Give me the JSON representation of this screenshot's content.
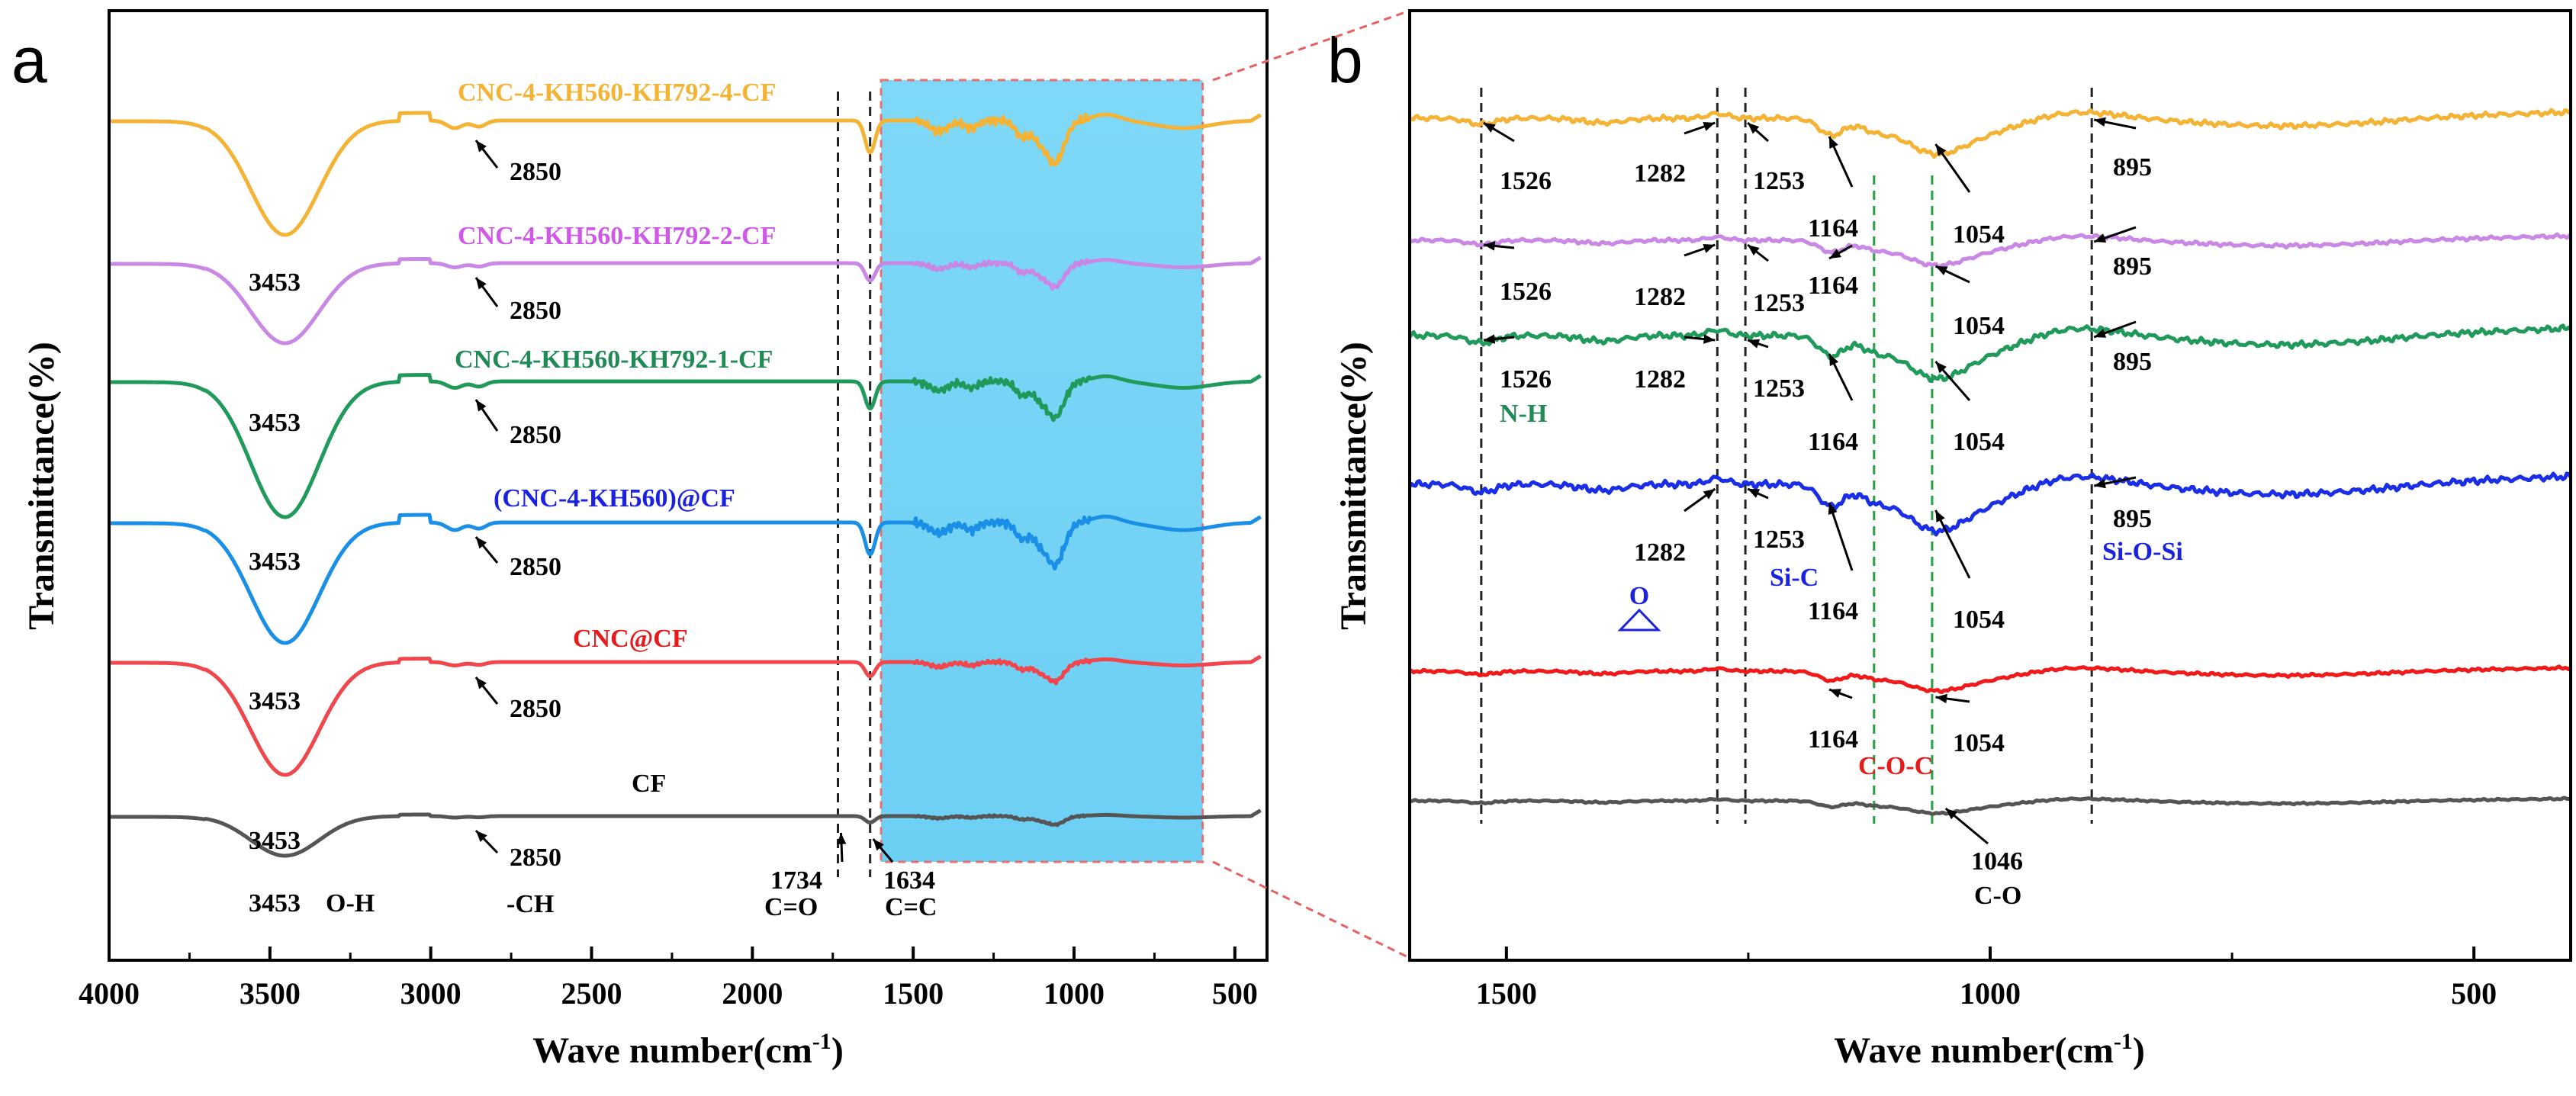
{
  "figure": {
    "panel_a": "a",
    "panel_b": "b"
  },
  "chart_data": [
    {
      "type": "line",
      "panel": "a",
      "xlabel": "Wave number(cm⁻¹)",
      "ylabel": "Transmittance(%)",
      "xlim": [
        4000,
        400
      ],
      "xticks": [
        "4000",
        "3500",
        "3000",
        "2500",
        "2000",
        "1500",
        "1000",
        "500"
      ],
      "highlight_region": [
        1600,
        600
      ],
      "ref_lines": [
        1734,
        1634
      ],
      "series": [
        {
          "name": "CNC-4-KH560-KH792-4-CF",
          "color": "#f5b335"
        },
        {
          "name": "CNC-4-KH560-KH792-2-CF",
          "color": "#c987e6"
        },
        {
          "name": "CNC-4-KH560-KH792-1-CF",
          "color": "#1f9a5a"
        },
        {
          "name": "(CNC-4-KH560)@CF",
          "color": "#1a8fe8"
        },
        {
          "name": "CNC@CF",
          "color": "#f0464c"
        },
        {
          "name": "CF",
          "color": "#555555"
        }
      ],
      "peak_labels": {
        "oh": "3453",
        "ch": "2850",
        "oh_group": "O-H",
        "ch_group": "-CH",
        "co": "1734",
        "co_group": "C=O",
        "cc": "1634",
        "cc_group": "C=C"
      }
    },
    {
      "type": "line",
      "panel": "b",
      "xlabel": "Wave number(cm⁻¹)",
      "ylabel": "Transmittance(%)",
      "xlim": [
        1600,
        400
      ],
      "xticks": [
        "1500",
        "1000",
        "500"
      ],
      "ref_lines_black": [
        1526,
        1282,
        1253,
        895
      ],
      "ref_lines_green": [
        1120,
        1060
      ],
      "series": [
        {
          "name": "CNC-4-KH560-KH792-4-CF",
          "color": "#f5b335"
        },
        {
          "name": "CNC-4-KH560-KH792-2-CF",
          "color": "#c987e6"
        },
        {
          "name": "CNC-4-KH560-KH792-1-CF",
          "color": "#1f9a5a"
        },
        {
          "name": "(CNC-4-KH560)@CF",
          "color": "#1a2ee8"
        },
        {
          "name": "CNC@CF",
          "color": "#f01a1a"
        },
        {
          "name": "CF",
          "color": "#555555"
        }
      ],
      "peak_labels": {
        "p1526": "1526",
        "p1282": "1282",
        "p1253": "1253",
        "p1164": "1164",
        "p1054": "1054",
        "p895": "895",
        "p1046": "1046",
        "nh": "N-H",
        "sic": "Si-C",
        "siosi": "Si-O-Si",
        "coc": "C-O-C",
        "co": "C-O",
        "epoxy": "O"
      }
    }
  ]
}
